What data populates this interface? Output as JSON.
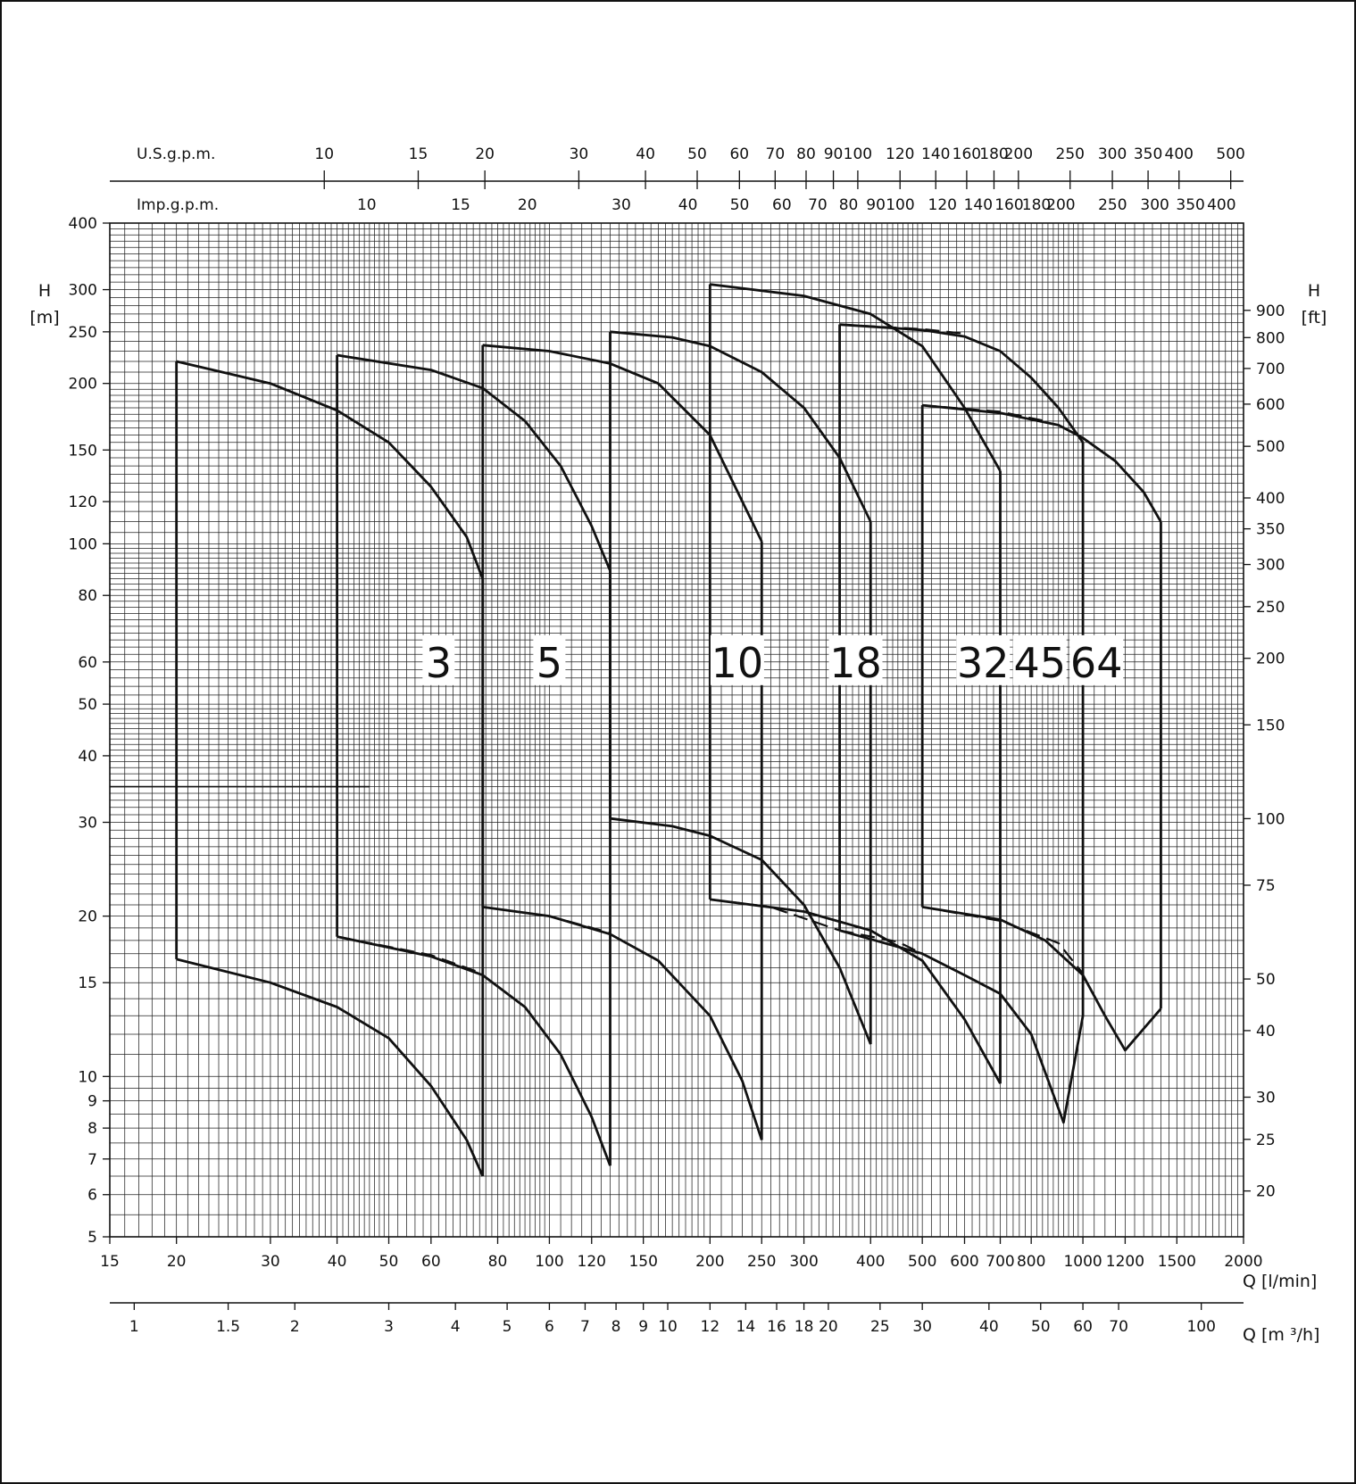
{
  "chart_data": {
    "type": "line",
    "x_scale": "log",
    "y_scale": "log",
    "xlim": [
      15,
      2000
    ],
    "ylim": [
      5,
      400
    ],
    "y_label": "H",
    "y_unit": "[m]",
    "y_right_label": "H",
    "y_right_unit": "[ft]",
    "x_label": "Q [l/min]",
    "x2_label": "Q [m ³/h]",
    "top1_label": "U.S.g.p.m.",
    "top2_label": "Imp.g.p.m.",
    "x_ticks": [
      "15",
      "20",
      "30",
      "40",
      "50",
      "60",
      "80",
      "100",
      "120",
      "150",
      "200",
      "250",
      "300",
      "400",
      "500",
      "600",
      "700",
      "800",
      "1000",
      "1200",
      "1500",
      "2000"
    ],
    "y_ticks": [
      "5",
      "6",
      "7",
      "8",
      "9",
      "10",
      "15",
      "20",
      "30",
      "40",
      "50",
      "60",
      "80",
      "100",
      "120",
      "150",
      "200",
      "250",
      "300",
      "400"
    ],
    "y_right_ticks": [
      "20",
      "25",
      "30",
      "40",
      "50",
      "75",
      "100",
      "150",
      "200",
      "250",
      "300",
      "350",
      "400",
      "500",
      "600",
      "700",
      "800",
      "900"
    ],
    "m3h_ticks": [
      "1",
      "1.5",
      "2",
      "3",
      "4",
      "5",
      "6",
      "7",
      "8",
      "9",
      "10",
      "12",
      "14",
      "16",
      "18",
      "20",
      "25",
      "30",
      "40",
      "50",
      "60",
      "70",
      "100"
    ],
    "usgpm_ticks": [
      "10",
      "15",
      "20",
      "30",
      "40",
      "50",
      "60",
      "70",
      "80",
      "90",
      "100",
      "120",
      "140",
      "160",
      "180",
      "200",
      "250",
      "300",
      "350",
      "400",
      "500"
    ],
    "impgpm_ticks": [
      "10",
      "15",
      "20",
      "30",
      "40",
      "50",
      "60",
      "70",
      "80",
      "90",
      "100",
      "120",
      "140",
      "160",
      "180",
      "200",
      "250",
      "300",
      "350",
      "400"
    ],
    "reference_line_H": 35,
    "series": [
      {
        "name": "3",
        "q_min": 20,
        "q_max": 75,
        "h_top": [
          [
            20,
            220
          ],
          [
            30,
            200
          ],
          [
            40,
            178
          ],
          [
            50,
            155
          ],
          [
            60,
            128
          ],
          [
            70,
            103
          ],
          [
            75,
            86
          ]
        ],
        "h_bottom": [
          [
            20,
            16.6
          ],
          [
            30,
            15.0
          ],
          [
            40,
            13.5
          ],
          [
            50,
            11.8
          ],
          [
            60,
            9.6
          ],
          [
            70,
            7.6
          ],
          [
            75,
            6.5
          ]
        ],
        "divider": {
          "q": 40,
          "h_top": 226,
          "h_bottom": 18.3
        }
      },
      {
        "name": "5",
        "q_min": 40,
        "q_max": 130,
        "h_top": [
          [
            40,
            226
          ],
          [
            60,
            212
          ],
          [
            75,
            196
          ],
          [
            90,
            170
          ],
          [
            105,
            140
          ],
          [
            120,
            108
          ],
          [
            130,
            89
          ]
        ],
        "h_bottom": [
          [
            40,
            18.3
          ],
          [
            60,
            16.8
          ],
          [
            75,
            15.5
          ],
          [
            90,
            13.5
          ],
          [
            105,
            11.0
          ],
          [
            120,
            8.4
          ],
          [
            130,
            6.8
          ]
        ],
        "divider": {
          "q": 75,
          "h_top": 236,
          "h_bottom": 20.8
        }
      },
      {
        "name": "10",
        "q_min": 75,
        "q_max": 250,
        "h_top": [
          [
            75,
            236
          ],
          [
            100,
            230
          ],
          [
            130,
            218
          ],
          [
            160,
            200
          ],
          [
            200,
            160
          ],
          [
            230,
            120
          ],
          [
            250,
            101
          ]
        ],
        "h_bottom": [
          [
            75,
            20.8
          ],
          [
            100,
            20.0
          ],
          [
            130,
            18.5
          ],
          [
            160,
            16.5
          ],
          [
            200,
            13.0
          ],
          [
            230,
            9.8
          ],
          [
            250,
            7.6
          ]
        ],
        "divider": {
          "q": 130,
          "h_top": 250,
          "h_bottom": 30.5
        }
      },
      {
        "name": "18",
        "q_min": 130,
        "q_max": 400,
        "h_top": [
          [
            130,
            250
          ],
          [
            170,
            244
          ],
          [
            200,
            235
          ],
          [
            250,
            210
          ],
          [
            300,
            180
          ],
          [
            350,
            145
          ],
          [
            400,
            110
          ]
        ],
        "h_bottom": [
          [
            130,
            30.5
          ],
          [
            170,
            29.5
          ],
          [
            200,
            28.3
          ],
          [
            250,
            25.5
          ],
          [
            300,
            21.0
          ],
          [
            350,
            16.0
          ],
          [
            400,
            11.5
          ]
        ],
        "divider": {
          "q": 200,
          "h_top": 307,
          "h_bottom": 21.5
        }
      },
      {
        "name": "32",
        "q_min": 200,
        "q_max": 700,
        "h_top": [
          [
            200,
            307
          ],
          [
            300,
            292
          ],
          [
            400,
            270
          ],
          [
            500,
            235
          ],
          [
            600,
            180
          ],
          [
            700,
            137
          ]
        ],
        "h_bottom": [
          [
            200,
            21.5
          ],
          [
            300,
            20.4
          ],
          [
            400,
            18.8
          ],
          [
            500,
            16.5
          ],
          [
            600,
            12.8
          ],
          [
            700,
            9.7
          ]
        ],
        "divider": {
          "q": 350,
          "h_top": 258,
          "h_bottom": 18.8
        }
      },
      {
        "name": "45",
        "q_min": 350,
        "q_max": 1000,
        "h_top": [
          [
            350,
            258
          ],
          [
            500,
            252
          ],
          [
            600,
            245
          ],
          [
            700,
            230
          ],
          [
            800,
            205
          ],
          [
            900,
            180
          ],
          [
            1000,
            155
          ]
        ],
        "h_bottom": [
          [
            350,
            18.8
          ],
          [
            500,
            17.0
          ],
          [
            600,
            15.5
          ],
          [
            700,
            14.3
          ],
          [
            800,
            12.0
          ],
          [
            920,
            8.2
          ],
          [
            1000,
            13.0
          ]
        ],
        "divider": {
          "q": 500,
          "h_top": 182,
          "h_bottom": 20.8
        }
      },
      {
        "name": "64",
        "q_min": 500,
        "q_max": 1400,
        "h_top": [
          [
            500,
            182
          ],
          [
            700,
            176
          ],
          [
            900,
            167
          ],
          [
            1000,
            158
          ],
          [
            1150,
            143
          ],
          [
            1300,
            125
          ],
          [
            1400,
            110
          ]
        ],
        "h_bottom": [
          [
            500,
            20.8
          ],
          [
            700,
            19.7
          ],
          [
            850,
            18.0
          ],
          [
            1000,
            15.5
          ],
          [
            1100,
            13.0
          ],
          [
            1200,
            11.2
          ],
          [
            1400,
            13.4
          ]
        ]
      }
    ]
  }
}
